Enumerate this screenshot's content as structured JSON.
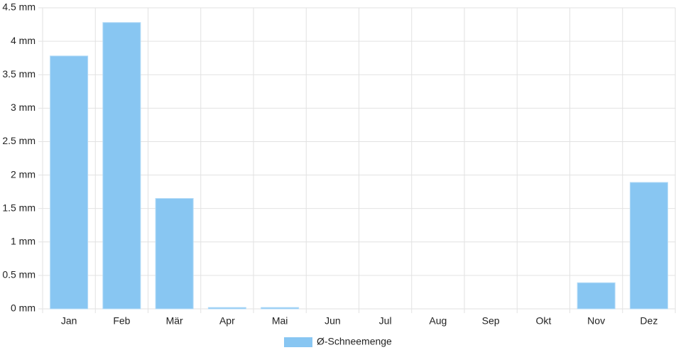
{
  "chart_data": {
    "type": "bar",
    "categories": [
      "Jan",
      "Feb",
      "Mär",
      "Apr",
      "Mai",
      "Jun",
      "Jul",
      "Aug",
      "Sep",
      "Okt",
      "Nov",
      "Dez"
    ],
    "series": [
      {
        "name": "Ø-Schneemenge",
        "color": "#88c6f2",
        "values": [
          3.78,
          4.28,
          1.65,
          0.02,
          0.02,
          0,
          0,
          0,
          0,
          0,
          0.39,
          1.89
        ]
      }
    ],
    "ylim": [
      0,
      4.5
    ],
    "yticks": [
      {
        "value": 0,
        "label": "0 mm"
      },
      {
        "value": 0.5,
        "label": "0.5 mm"
      },
      {
        "value": 1,
        "label": "1 mm"
      },
      {
        "value": 1.5,
        "label": "1.5 mm"
      },
      {
        "value": 2,
        "label": "2 mm"
      },
      {
        "value": 2.5,
        "label": "2.5 mm"
      },
      {
        "value": 3,
        "label": "3 mm"
      },
      {
        "value": 3.5,
        "label": "3.5 mm"
      },
      {
        "value": 4,
        "label": "4 mm"
      },
      {
        "value": 4.5,
        "label": "4.5 mm"
      }
    ],
    "grid": true,
    "legend": "bottom"
  }
}
